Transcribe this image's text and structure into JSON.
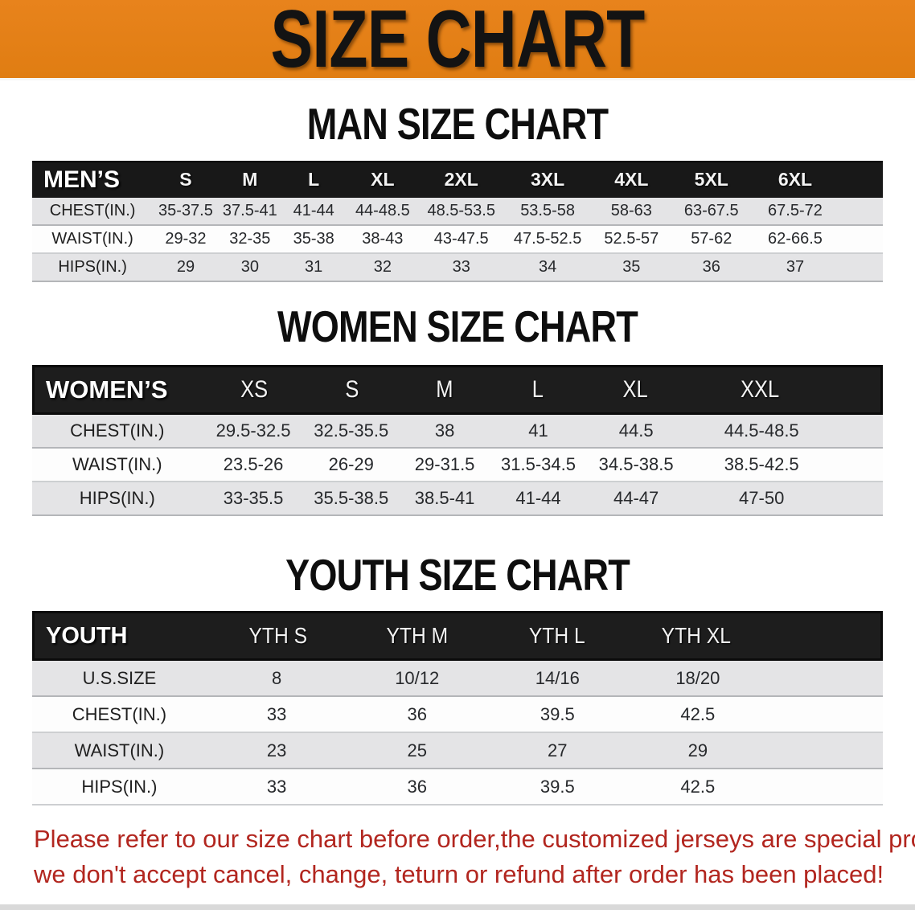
{
  "banner": {
    "title": "SIZE CHART",
    "bg_color": "#E8831C",
    "text_color": "#131313"
  },
  "sections": [
    {
      "heading": "MAN SIZE CHART",
      "table": {
        "header_label": "MEN’S",
        "sizes": [
          "S",
          "M",
          "L",
          "XL",
          "2XL",
          "3XL",
          "4XL",
          "5XL",
          "6XL"
        ],
        "rows": [
          {
            "label": "CHEST(IN.)",
            "values": [
              "35-37.5",
              "37.5-41",
              "41-44",
              "44-48.5",
              "48.5-53.5",
              "53.5-58",
              "58-63",
              "63-67.5",
              "67.5-72"
            ]
          },
          {
            "label": "WAIST(IN.)",
            "values": [
              "29-32",
              "32-35",
              "35-38",
              "38-43",
              "43-47.5",
              "47.5-52.5",
              "52.5-57",
              "57-62",
              "62-66.5"
            ]
          },
          {
            "label": "HIPS(IN.)",
            "values": [
              "29",
              "30",
              "31",
              "32",
              "33",
              "34",
              "35",
              "36",
              "37"
            ]
          }
        ]
      }
    },
    {
      "heading": "WOMEN SIZE CHART",
      "table": {
        "header_label": "WOMEN’S",
        "sizes": [
          "XS",
          "S",
          "M",
          "L",
          "XL",
          "XXL"
        ],
        "rows": [
          {
            "label": "CHEST(IN.)",
            "values": [
              "29.5-32.5",
              "32.5-35.5",
              "38",
              "41",
              "44.5",
              "44.5-48.5"
            ]
          },
          {
            "label": "WAIST(IN.)",
            "values": [
              "23.5-26",
              "26-29",
              "29-31.5",
              "31.5-34.5",
              "34.5-38.5",
              "38.5-42.5"
            ]
          },
          {
            "label": "HIPS(IN.)",
            "values": [
              "33-35.5",
              "35.5-38.5",
              "38.5-41",
              "41-44",
              "44-47",
              "47-50"
            ]
          }
        ]
      }
    },
    {
      "heading": "YOUTH SIZE CHART",
      "table": {
        "header_label": "YOUTH",
        "sizes": [
          "YTH S",
          "YTH M",
          "YTH L",
          "YTH XL"
        ],
        "rows": [
          {
            "label": "U.S.SIZE",
            "values": [
              "8",
              "10/12",
              "14/16",
              "18/20"
            ]
          },
          {
            "label": "CHEST(IN.)",
            "values": [
              "33",
              "36",
              "39.5",
              "42.5"
            ]
          },
          {
            "label": "WAIST(IN.)",
            "values": [
              "23",
              "25",
              "27",
              "29"
            ]
          },
          {
            "label": "HIPS(IN.)",
            "values": [
              "33",
              "36",
              "39.5",
              "42.5"
            ]
          }
        ]
      }
    }
  ],
  "footer": {
    "line1": "Please refer to our size chart before order,the customized jerseys are special products,",
    "line2": "we don't accept cancel, change, teturn or refund after order has been placed!",
    "text_color": "#B2261F"
  }
}
